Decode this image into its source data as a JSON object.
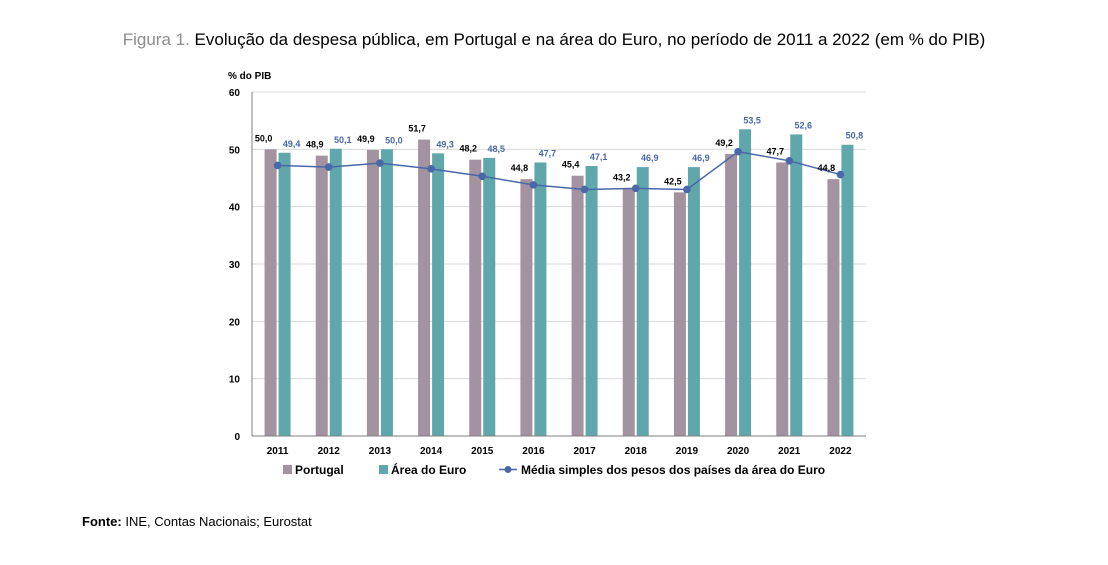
{
  "caption": {
    "label": "Figura 1.",
    "title": "Evolução da despesa pública, em Portugal e na área do Euro, no período de 2011 a 2022 (em % do PIB)"
  },
  "source": {
    "label": "Fonte:",
    "text": "INE, Contas Nacionais; Eurostat"
  },
  "chart_data": {
    "type": "bar",
    "title": "",
    "ylabel": "% do PIB",
    "xlabel": "",
    "ylim": [
      0,
      60
    ],
    "yticks": [
      0,
      10,
      20,
      30,
      40,
      50,
      60
    ],
    "grid": true,
    "legend_position": "bottom",
    "categories": [
      "2011",
      "2012",
      "2013",
      "2014",
      "2015",
      "2016",
      "2017",
      "2018",
      "2019",
      "2020",
      "2021",
      "2022"
    ],
    "series": [
      {
        "name": "Portugal",
        "kind": "bar",
        "color": "#a3929f",
        "label_color": "#000000",
        "values": [
          50.0,
          48.9,
          49.9,
          51.7,
          48.2,
          44.8,
          45.4,
          43.2,
          42.5,
          49.2,
          47.7,
          44.8
        ],
        "labels": [
          "50,0",
          "48,9",
          "49,9",
          "51,7",
          "48,2",
          "44,8",
          "45,4",
          "43,2",
          "42,5",
          "49,2",
          "47,7",
          "44,8"
        ]
      },
      {
        "name": "Área do Euro",
        "kind": "bar",
        "color": "#5fa7ab",
        "label_color": "#4a67a8",
        "values": [
          49.4,
          50.1,
          50.0,
          49.3,
          48.5,
          47.7,
          47.1,
          46.9,
          46.9,
          53.5,
          52.6,
          50.8
        ],
        "labels": [
          "49,4",
          "50,1",
          "50,0",
          "49,3",
          "48,5",
          "47,7",
          "47,1",
          "46,9",
          "46,9",
          "53,5",
          "52,6",
          "50,8"
        ]
      },
      {
        "name": "Média simples dos pesos dos países da área do Euro",
        "kind": "line",
        "color": "#4a67a8",
        "values": [
          47.2,
          46.9,
          47.6,
          46.6,
          45.3,
          43.8,
          43.0,
          43.2,
          43.0,
          49.6,
          48.0,
          45.6
        ]
      }
    ]
  }
}
